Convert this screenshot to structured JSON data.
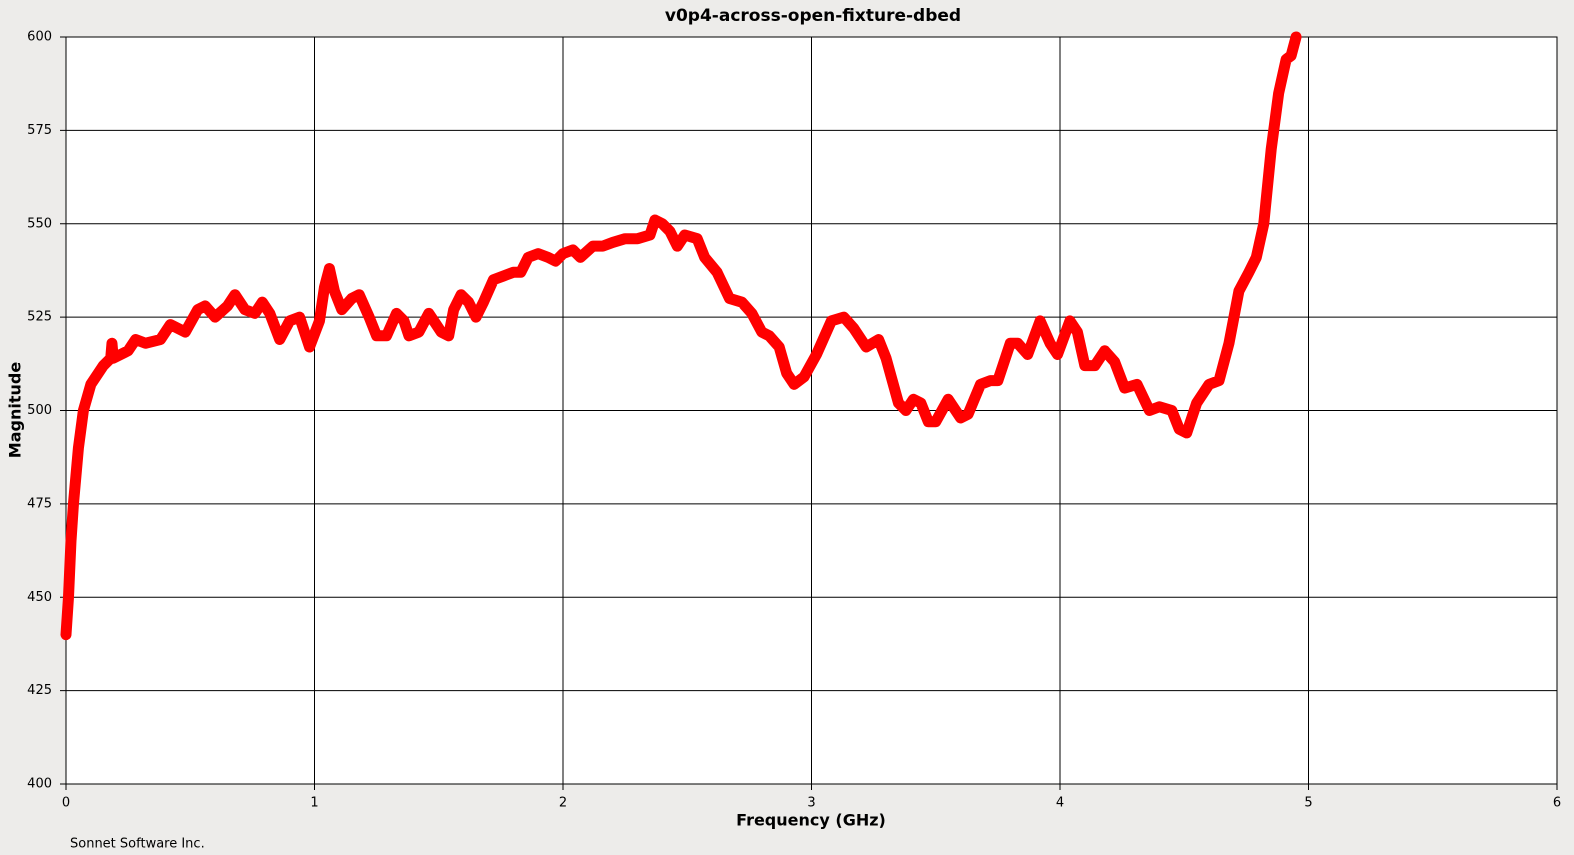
{
  "chart_data": {
    "type": "line",
    "title": "v0p4-across-open-fixture-dbed",
    "xlabel": "Frequency (GHz)",
    "ylabel": "Magnitude",
    "footer": "Sonnet Software Inc.",
    "xlim": [
      0,
      6
    ],
    "xticks": [
      0,
      1,
      2,
      3,
      4,
      5,
      6
    ],
    "ylim": [
      400,
      600
    ],
    "yticks": [
      400,
      425,
      450,
      475,
      500,
      525,
      550,
      575,
      600
    ],
    "grid": true,
    "x": [
      0.0,
      0.01,
      0.02,
      0.03,
      0.05,
      0.07,
      0.1,
      0.15,
      0.18,
      0.185,
      0.19,
      0.25,
      0.28,
      0.32,
      0.38,
      0.42,
      0.48,
      0.53,
      0.56,
      0.6,
      0.65,
      0.68,
      0.72,
      0.76,
      0.79,
      0.82,
      0.86,
      0.9,
      0.94,
      0.98,
      1.02,
      1.04,
      1.06,
      1.08,
      1.11,
      1.15,
      1.18,
      1.22,
      1.25,
      1.29,
      1.33,
      1.36,
      1.38,
      1.42,
      1.46,
      1.49,
      1.51,
      1.54,
      1.56,
      1.59,
      1.62,
      1.65,
      1.68,
      1.72,
      1.76,
      1.8,
      1.83,
      1.86,
      1.9,
      1.94,
      1.97,
      2.0,
      2.04,
      2.07,
      2.12,
      2.16,
      2.2,
      2.25,
      2.3,
      2.35,
      2.37,
      2.4,
      2.43,
      2.46,
      2.49,
      2.54,
      2.57,
      2.62,
      2.67,
      2.72,
      2.76,
      2.8,
      2.83,
      2.87,
      2.9,
      2.93,
      2.97,
      3.02,
      3.08,
      3.13,
      3.17,
      3.22,
      3.27,
      3.3,
      3.35,
      3.38,
      3.41,
      3.44,
      3.47,
      3.5,
      3.55,
      3.6,
      3.63,
      3.68,
      3.72,
      3.75,
      3.8,
      3.83,
      3.87,
      3.92,
      3.96,
      3.99,
      4.04,
      4.07,
      4.1,
      4.14,
      4.18,
      4.22,
      4.26,
      4.31,
      4.36,
      4.4,
      4.45,
      4.48,
      4.51,
      4.55,
      4.6,
      4.64,
      4.68,
      4.72,
      4.76,
      4.79,
      4.82,
      4.85,
      4.88,
      4.91,
      4.93,
      4.95
    ],
    "series": [
      {
        "color": "#ff0000",
        "values": [
          440,
          450,
          465,
          475,
          490,
          500,
          507,
          512,
          514,
          518,
          514,
          516,
          519,
          518,
          519,
          523,
          521,
          527,
          528,
          525,
          528,
          531,
          527,
          526,
          529,
          526,
          519,
          524,
          525,
          517,
          524,
          533,
          538,
          532,
          527,
          530,
          531,
          525,
          520,
          520,
          526,
          524,
          520,
          521,
          526,
          523,
          521,
          520,
          527,
          531,
          529,
          525,
          529,
          535,
          536,
          537,
          537,
          541,
          542,
          541,
          540,
          542,
          543,
          541,
          544,
          544,
          545,
          546,
          546,
          547,
          551,
          550,
          548,
          544,
          547,
          546,
          541,
          537,
          530,
          529,
          526,
          521,
          520,
          517,
          510,
          507,
          509,
          515,
          524,
          525,
          522,
          517,
          519,
          514,
          502,
          500,
          503,
          502,
          497,
          497,
          503,
          498,
          499,
          507,
          508,
          508,
          518,
          518,
          515,
          524,
          518,
          515,
          524,
          521,
          512,
          512,
          516,
          513,
          506,
          507,
          500,
          501,
          500,
          495,
          494,
          502,
          507,
          508,
          518,
          532,
          537,
          541,
          550,
          570,
          585,
          594,
          595,
          600
        ]
      }
    ]
  }
}
